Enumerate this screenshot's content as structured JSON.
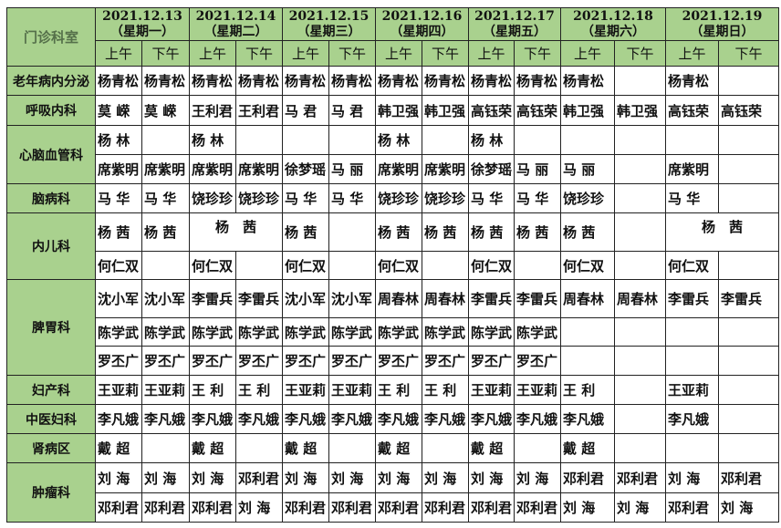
{
  "corner_label": "门诊科室",
  "half_labels": [
    "上午",
    "下午"
  ],
  "dates": [
    {
      "date": "2021.12.13",
      "weekday": "（星期一）"
    },
    {
      "date": "2021.12.14",
      "weekday": "（星期二）"
    },
    {
      "date": "2021.12.15",
      "weekday": "（星期三）"
    },
    {
      "date": "2021.12.16",
      "weekday": "（星期四）"
    },
    {
      "date": "2021.12.17",
      "weekday": "（星期五）"
    },
    {
      "date": "2021.12.18",
      "weekday": "（星期六）"
    },
    {
      "date": "2021.12.19",
      "weekday": "（星期日）"
    }
  ],
  "colors": {
    "header_bg": "#a9d18e",
    "border": "#222222"
  },
  "departments": [
    {
      "name": "老年病内分泌",
      "rows": [
        [
          "杨青松",
          "杨青松",
          "杨青松",
          "杨青松",
          "杨青松",
          "杨青松",
          "杨青松",
          "杨青松",
          "杨青松",
          "杨青松",
          "杨青松",
          "",
          "杨青松",
          ""
        ]
      ]
    },
    {
      "name": "呼吸内科",
      "rows": [
        [
          "莫 嵘",
          "莫 嵘",
          "王利君",
          "王利君",
          "马 君",
          "马 君",
          "韩卫强",
          "韩卫强",
          "高钰荣",
          "高钰荣",
          "韩卫强",
          "韩卫强",
          "高钰荣",
          "高钰荣"
        ]
      ]
    },
    {
      "name": "心脑血管科",
      "rows": [
        [
          "杨 林",
          "",
          "杨 林",
          "",
          "",
          "",
          "杨 林",
          "",
          "杨 林",
          "",
          "",
          "",
          "",
          ""
        ],
        [
          "席紫明",
          "席紫明",
          "席紫明",
          "席紫明",
          "徐梦瑶",
          "马 丽",
          "席紫明",
          "席紫明",
          "徐梦瑶",
          "马 丽",
          "马 丽",
          "",
          "席紫明",
          ""
        ]
      ]
    },
    {
      "name": "脑病科",
      "rows": [
        [
          "马 华",
          "马 华",
          "饶珍珍",
          "饶珍珍",
          "马 华",
          "马 华",
          "饶珍珍",
          "饶珍珍",
          "马 华",
          "马 华",
          "饶珍珍",
          "",
          "马 华",
          ""
        ]
      ]
    },
    {
      "name": "内儿科",
      "rows": [
        [
          "杨 茜",
          "杨 茜",
          {
            "text": "杨 茜",
            "span": 2
          },
          "杨 茜",
          "",
          "杨 茜",
          "杨 茜",
          "杨 茜",
          "杨 茜",
          "杨 茜",
          "",
          {
            "text": "杨 茜",
            "span": 2
          }
        ],
        [
          "何仁双",
          "",
          "何仁双",
          "",
          "何仁双",
          "",
          "何仁双",
          "",
          "何仁双",
          "",
          "何仁双",
          "",
          "何仁双",
          ""
        ]
      ]
    },
    {
      "name": "脾胃科",
      "rows": [
        [
          "沈小军",
          "沈小军",
          "李雷兵",
          "李雷兵",
          "沈小军",
          "沈小军",
          "周春林",
          "周春林",
          "李雷兵",
          "李雷兵",
          "周春林",
          "周春林",
          "李雷兵",
          "李雷兵"
        ],
        [
          "陈学武",
          "陈学武",
          "陈学武",
          "陈学武",
          "陈学武",
          "陈学武",
          "陈学武",
          "陈学武",
          "陈学武",
          "陈学武",
          "",
          "",
          "",
          ""
        ],
        [
          "罗丕广",
          "罗丕广",
          "罗丕广",
          "罗丕广",
          "罗丕广",
          "罗丕广",
          "罗丕广",
          "罗丕广",
          "罗丕广",
          "罗丕广",
          "",
          "",
          "",
          ""
        ]
      ]
    },
    {
      "name": "妇产科",
      "rows": [
        [
          "王亚莉",
          "王亚莉",
          "王 利",
          "王 利",
          "王亚莉",
          "王亚莉",
          "王 利",
          "王 利",
          "王亚莉",
          "王亚莉",
          "王 利",
          "",
          "王亚莉",
          ""
        ]
      ]
    },
    {
      "name": "中医妇科",
      "rows": [
        [
          "李凡娥",
          "李凡娥",
          "李凡娥",
          "李凡娥",
          "李凡娥",
          "李凡娥",
          "李凡娥",
          "李凡娥",
          "李凡娥",
          "李凡娥",
          "李凡娥",
          "",
          "李凡娥",
          ""
        ]
      ]
    },
    {
      "name": "肾病区",
      "rows": [
        [
          "戴 超",
          "",
          "戴 超",
          "",
          "戴 超",
          "",
          "戴 超",
          "",
          "戴 超",
          "",
          "戴 超",
          "",
          "",
          ""
        ]
      ]
    },
    {
      "name": "肿瘤科",
      "rows": [
        [
          "刘 海",
          "刘 海",
          "刘 海",
          "邓利君",
          "刘 海",
          "刘 海",
          "刘 海",
          "刘 海",
          "刘 海",
          "刘 海",
          "邓利君",
          "邓利君",
          "刘 海",
          "邓利君"
        ],
        [
          "邓利君",
          "邓利君",
          "邓利君",
          "刘 海",
          "邓利君",
          "邓利君",
          "邓利君",
          "邓利君",
          "邓利君",
          "邓利君",
          "刘 海",
          "刘 海",
          "邓利君",
          "刘 海"
        ]
      ]
    }
  ]
}
